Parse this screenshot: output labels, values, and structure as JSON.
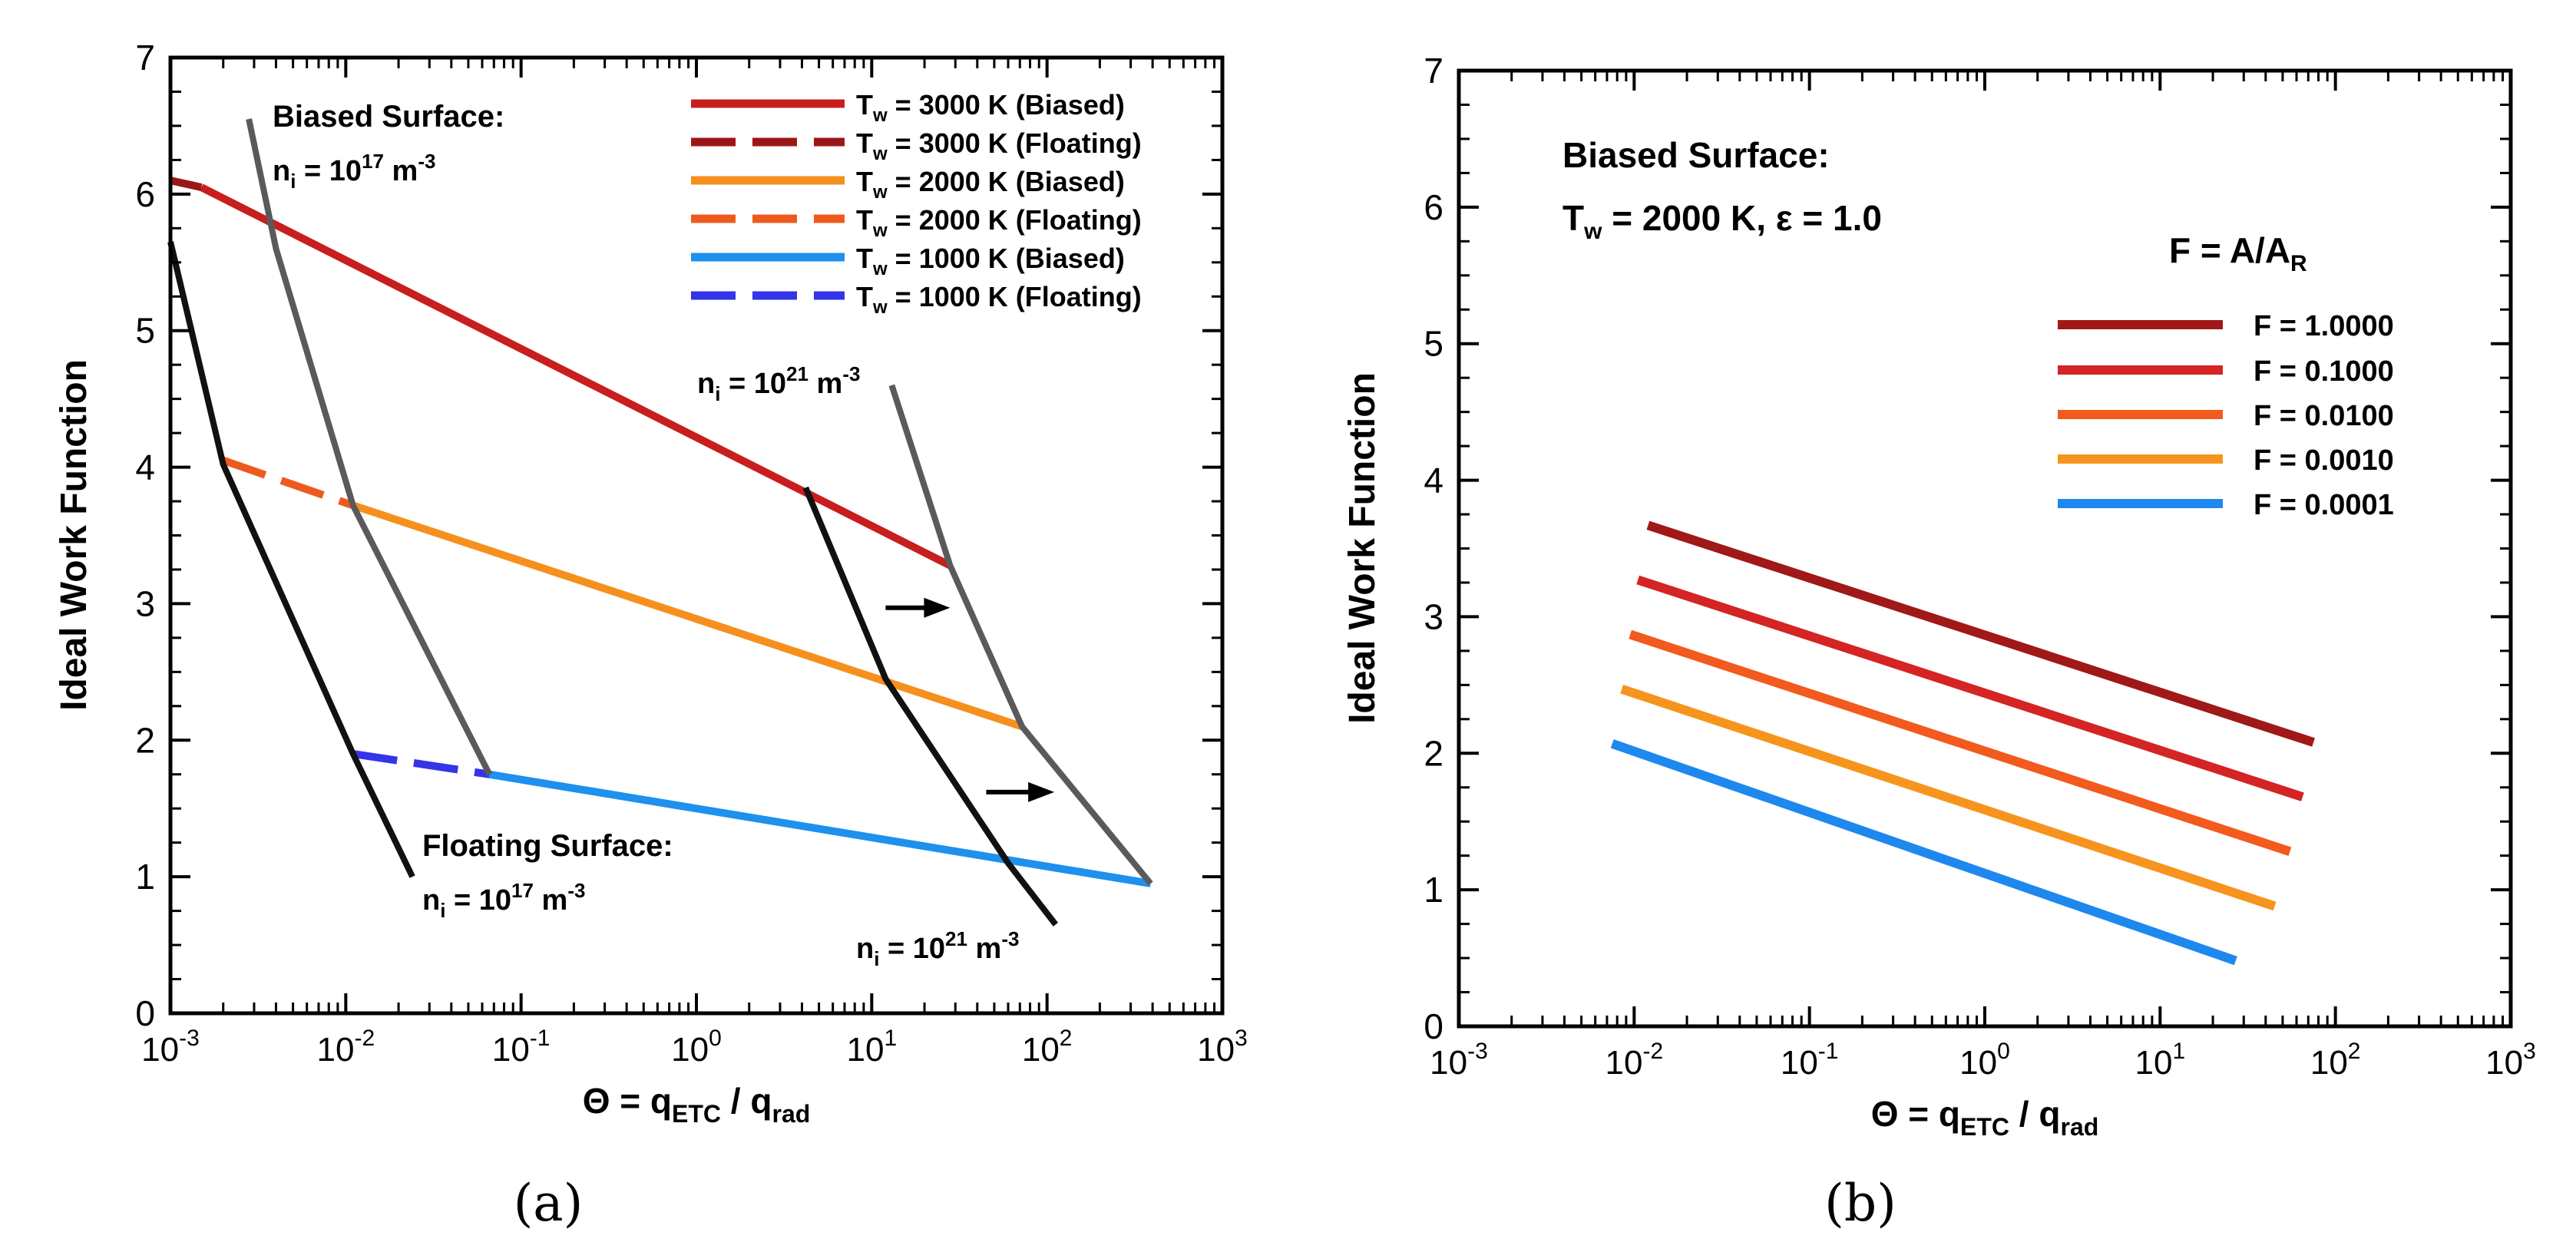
{
  "chart_data": [
    {
      "type": "line",
      "panel_label": "(a)",
      "xscale": "log",
      "xlim": [
        0.001,
        1000
      ],
      "ylim": [
        0,
        7
      ],
      "xticks": [
        {
          "base": "10",
          "exp": "-3"
        },
        {
          "base": "10",
          "exp": "-2"
        },
        {
          "base": "10",
          "exp": "-1"
        },
        {
          "base": "10",
          "exp": "0"
        },
        {
          "base": "10",
          "exp": "1"
        },
        {
          "base": "10",
          "exp": "2"
        },
        {
          "base": "10",
          "exp": "3"
        }
      ],
      "yticks": [
        "0",
        "1",
        "2",
        "3",
        "4",
        "5",
        "6",
        "7"
      ],
      "xlabel": {
        "pre": "Θ = q",
        "sub1": "ETC",
        "mid": " / q",
        "sub2": "rad"
      },
      "ylabel": "Ideal Work Function",
      "series": [
        {
          "name": "Tw = 3000 K (Biased)",
          "color": "#c81e1e",
          "dash": false,
          "x": [
            0.0015,
            28
          ],
          "y": [
            6.05,
            3.28
          ]
        },
        {
          "name": "Tw = 3000 K (Floating)",
          "color": "#9b1717",
          "dash": true,
          "x": [
            0.001,
            0.0015
          ],
          "y": [
            6.1,
            6.05
          ]
        },
        {
          "name": "Tw = 2000 K (Biased)",
          "color": "#f5901e",
          "dash": false,
          "x": [
            0.011,
            72
          ],
          "y": [
            3.72,
            2.1
          ]
        },
        {
          "name": "Tw = 2000 K (Floating)",
          "color": "#ee5a1e",
          "dash": true,
          "x": [
            0.002,
            0.011
          ],
          "y": [
            4.05,
            3.72
          ]
        },
        {
          "name": "Tw = 1000 K (Biased)",
          "color": "#1e90ee",
          "dash": false,
          "x": [
            0.066,
            390
          ],
          "y": [
            1.75,
            0.95
          ]
        },
        {
          "name": "Tw = 1000 K (Floating)",
          "color": "#3434e8",
          "dash": true,
          "x": [
            0.011,
            0.066
          ],
          "y": [
            1.9,
            1.75
          ]
        }
      ],
      "iso_lines": [
        {
          "color": "#111111",
          "x": [
            0.001,
            0.002,
            0.011,
            0.024
          ],
          "y": [
            5.65,
            4.02,
            1.9,
            1.0
          ]
        },
        {
          "color": "#5a5a5a",
          "x": [
            0.0028,
            0.004,
            0.011,
            0.066
          ],
          "y": [
            6.55,
            5.6,
            3.72,
            1.75
          ]
        },
        {
          "color": "#111111",
          "x": [
            4.2,
            12,
            60,
            112
          ],
          "y": [
            3.85,
            2.45,
            1.1,
            0.65
          ]
        },
        {
          "color": "#5a5a5a",
          "x": [
            13,
            28,
            72,
            390
          ],
          "y": [
            4.6,
            3.28,
            2.1,
            0.95
          ]
        }
      ],
      "arrows": [
        {
          "x": [
            12,
            28
          ],
          "y": [
            2.97,
            2.97
          ]
        },
        {
          "x": [
            45,
            110
          ],
          "y": [
            1.62,
            1.62
          ]
        }
      ],
      "annotations": {
        "biased_title": "Biased Surface:",
        "biased_ni": {
          "pre": "n",
          "sub": "i",
          "mid": " = 10",
          "sup": "17",
          "post": " m",
          "sup2": "-3"
        },
        "floating_title": "Floating Surface:",
        "floating_ni": {
          "pre": "n",
          "sub": "i",
          "mid": " = 10",
          "sup": "17",
          "post": " m",
          "sup2": "-3"
        },
        "upper_ni": {
          "pre": "n",
          "sub": "i",
          "mid": " = 10",
          "sup": "21",
          "post": " m",
          "sup2": "-3"
        },
        "lower_ni": {
          "pre": "n",
          "sub": "i",
          "mid": " = 10",
          "sup": "21",
          "post": " m",
          "sup2": "-3"
        }
      },
      "legend": [
        {
          "pre": "T",
          "sub": "w",
          "post": " = 3000 K (Biased)"
        },
        {
          "pre": "T",
          "sub": "w",
          "post": " = 3000 K (Floating)"
        },
        {
          "pre": "T",
          "sub": "w",
          "post": " = 2000 K (Biased)"
        },
        {
          "pre": "T",
          "sub": "w",
          "post": " = 2000 K (Floating)"
        },
        {
          "pre": "T",
          "sub": "w",
          "post": " = 1000 K (Biased)"
        },
        {
          "pre": "T",
          "sub": "w",
          "post": " = 1000 K (Floating)"
        }
      ]
    },
    {
      "type": "line",
      "panel_label": "(b)",
      "xscale": "log",
      "xlim": [
        0.001,
        1000
      ],
      "ylim": [
        0,
        7
      ],
      "xticks": [
        {
          "base": "10",
          "exp": "-3"
        },
        {
          "base": "10",
          "exp": "-2"
        },
        {
          "base": "10",
          "exp": "-1"
        },
        {
          "base": "10",
          "exp": "0"
        },
        {
          "base": "10",
          "exp": "1"
        },
        {
          "base": "10",
          "exp": "2"
        },
        {
          "base": "10",
          "exp": "3"
        }
      ],
      "yticks": [
        "0",
        "1",
        "2",
        "3",
        "4",
        "5",
        "6",
        "7"
      ],
      "xlabel": {
        "pre": "Θ = q",
        "sub1": "ETC",
        "mid": " / q",
        "sub2": "rad"
      },
      "ylabel": "Ideal Work Function",
      "series": [
        {
          "name": "F = 1.0000",
          "color": "#a01818",
          "x": [
            0.012,
            75
          ],
          "y": [
            3.67,
            2.08
          ]
        },
        {
          "name": "F = 0.1000",
          "color": "#d42424",
          "x": [
            0.0105,
            65
          ],
          "y": [
            3.27,
            1.68
          ]
        },
        {
          "name": "F = 0.0100",
          "color": "#f25a1e",
          "x": [
            0.0095,
            55
          ],
          "y": [
            2.87,
            1.28
          ]
        },
        {
          "name": "F = 0.0010",
          "color": "#f7941e",
          "x": [
            0.0085,
            45
          ],
          "y": [
            2.47,
            0.88
          ]
        },
        {
          "name": "F = 0.0001",
          "color": "#1e88ee",
          "x": [
            0.0075,
            27
          ],
          "y": [
            2.07,
            0.48
          ]
        }
      ],
      "annotations": {
        "title1": "Biased Surface:",
        "title2": {
          "pre": "T",
          "sub": "w",
          "post": " = 2000 K, ε = 1.0"
        },
        "legend_title": {
          "pre": "F = A/A",
          "sub": "R"
        }
      },
      "legend": [
        "F = 1.0000",
        "F = 0.1000",
        "F = 0.0100",
        "F = 0.0010",
        "F = 0.0001"
      ]
    }
  ]
}
